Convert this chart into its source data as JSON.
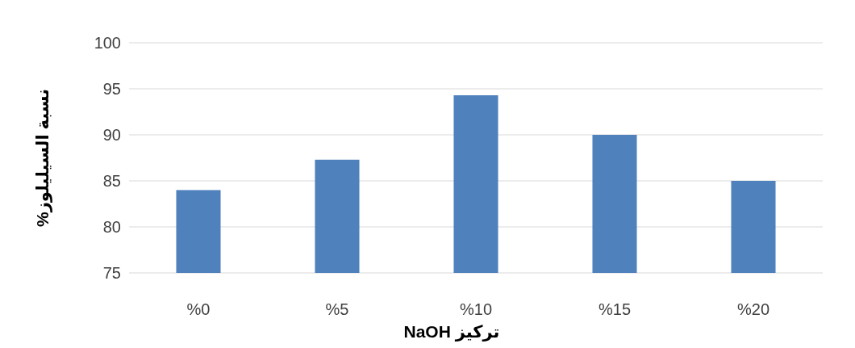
{
  "chart_data": {
    "type": "bar",
    "xlabel": "تركيز NaOH",
    "ylabel": "نسبة السيليلوز%",
    "categories": [
      "%0",
      "%5",
      "%10",
      "%15",
      "%20"
    ],
    "values": [
      84,
      87.3,
      94.3,
      90,
      85
    ],
    "color": "#4f81bd",
    "ylim": [
      75,
      100
    ],
    "yticks": [
      75,
      80,
      85,
      90,
      95,
      100
    ],
    "grid": "y"
  }
}
